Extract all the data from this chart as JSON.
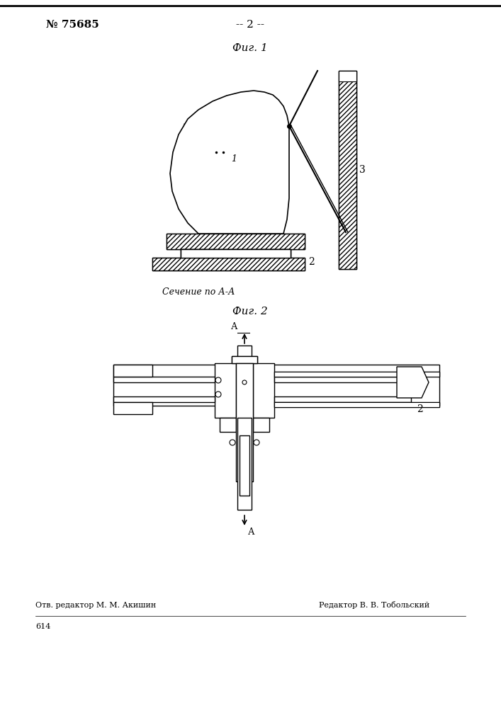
{
  "page_bg": "#ffffff",
  "border_color": "#000000",
  "patent_number": "№ 75685",
  "page_number": "-- 2 --",
  "fig1_label": "Фиг. 1",
  "fig2_label": "Фиг. 2",
  "section_label": "Сечение по А-А",
  "bottom_text_left": "Отв. редактор М. М. Акишин",
  "bottom_text_right": "Редактор В. В. Тобольский",
  "bottom_number": "614"
}
